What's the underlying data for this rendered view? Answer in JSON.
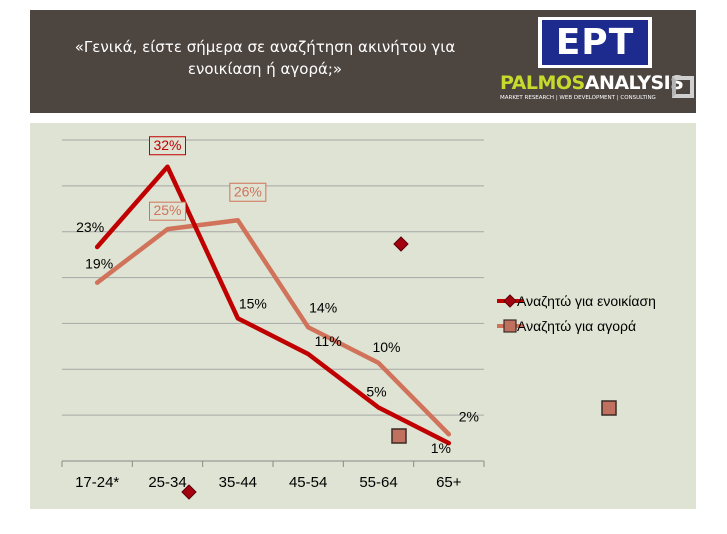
{
  "header": {
    "title_line1": "«Γενικά, είστε σήμερα σε αναζήτηση ακινήτου για",
    "title_line2": "ενοικίαση ή αγορά;»",
    "logo_ert": "ΕΡΤ",
    "logo_palmos_part1": "PALMOS",
    "logo_palmos_part2": "ANALYSIS",
    "logo_palmos_tagline": "MARKET RESEARCH | WEB DEVELOPMENT | CONSULTING"
  },
  "colors": {
    "rent": "#c00000",
    "buy": "#d0735a",
    "header_bg": "#4d4540",
    "plot_bg": "#dfe3d3"
  },
  "chart_data": {
    "type": "line",
    "categories": [
      "17-24*",
      "25-34",
      "35-44",
      "45-54",
      "55-64",
      "65+"
    ],
    "series": [
      {
        "name": "Αναζητώ για ενοικίαση",
        "values": [
          23,
          32,
          15,
          11,
          5,
          1
        ],
        "labels": [
          "23%",
          "32%",
          "15%",
          "11%",
          "5%",
          "1%"
        ]
      },
      {
        "name": "Αναζητώ για αγορά",
        "values": [
          19,
          25,
          26,
          14,
          10,
          2
        ],
        "labels": [
          "19%",
          "25%",
          "26%",
          "14%",
          "10%",
          "2%"
        ]
      }
    ],
    "ylim": [
      -1,
      35
    ],
    "grid": true,
    "legend": "right"
  }
}
